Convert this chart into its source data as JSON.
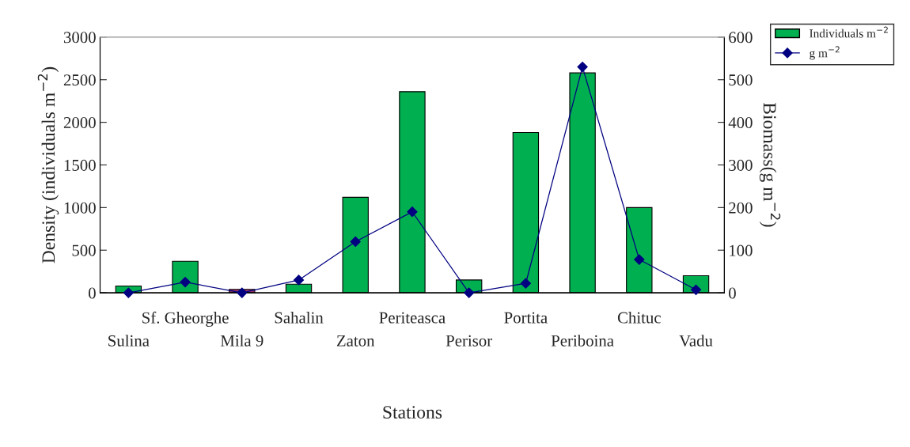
{
  "chart_data": {
    "type": "bar",
    "xlabel": "Stations",
    "ylabel": "Density (individuals m$^{−2}$)",
    "y2label": "Biomass(g m$^{−2}$)",
    "categories": [
      "Sulina",
      "Sf. Gheorghe",
      "Mila 9",
      "Sahalin",
      "Zaton",
      "Periteasca",
      "Perisor",
      "Portita",
      "Periboina",
      "Chituc",
      "Vadu"
    ],
    "series": [
      {
        "name": "Individuals m$^{−2}$",
        "color": "#00b050",
        "colors": [
          "#00b050",
          "#00b050",
          "#993366",
          "#00b050",
          "#00b050",
          "#00b050",
          "#00b050",
          "#00b050",
          "#00b050",
          "#00b050",
          "#00b050"
        ],
        "values": [
          80,
          370,
          40,
          100,
          1120,
          2360,
          150,
          1880,
          2580,
          1000,
          200
        ]
      },
      {
        "name": "g m$^{−2}$",
        "type": "line",
        "axis": "y2",
        "color": "#000080",
        "marker": "diamond",
        "values": [
          0,
          25,
          0,
          30,
          120,
          190,
          0,
          22,
          530,
          78,
          7
        ]
      }
    ],
    "ylim": [
      0,
      3000
    ],
    "yticks": [
      0,
      500,
      1000,
      1500,
      2000,
      2500,
      3000
    ],
    "y2lim": [
      0,
      600
    ],
    "y2ticks": [
      0,
      100,
      200,
      300,
      400,
      500,
      600
    ],
    "legend": "top right",
    "grid": false
  }
}
